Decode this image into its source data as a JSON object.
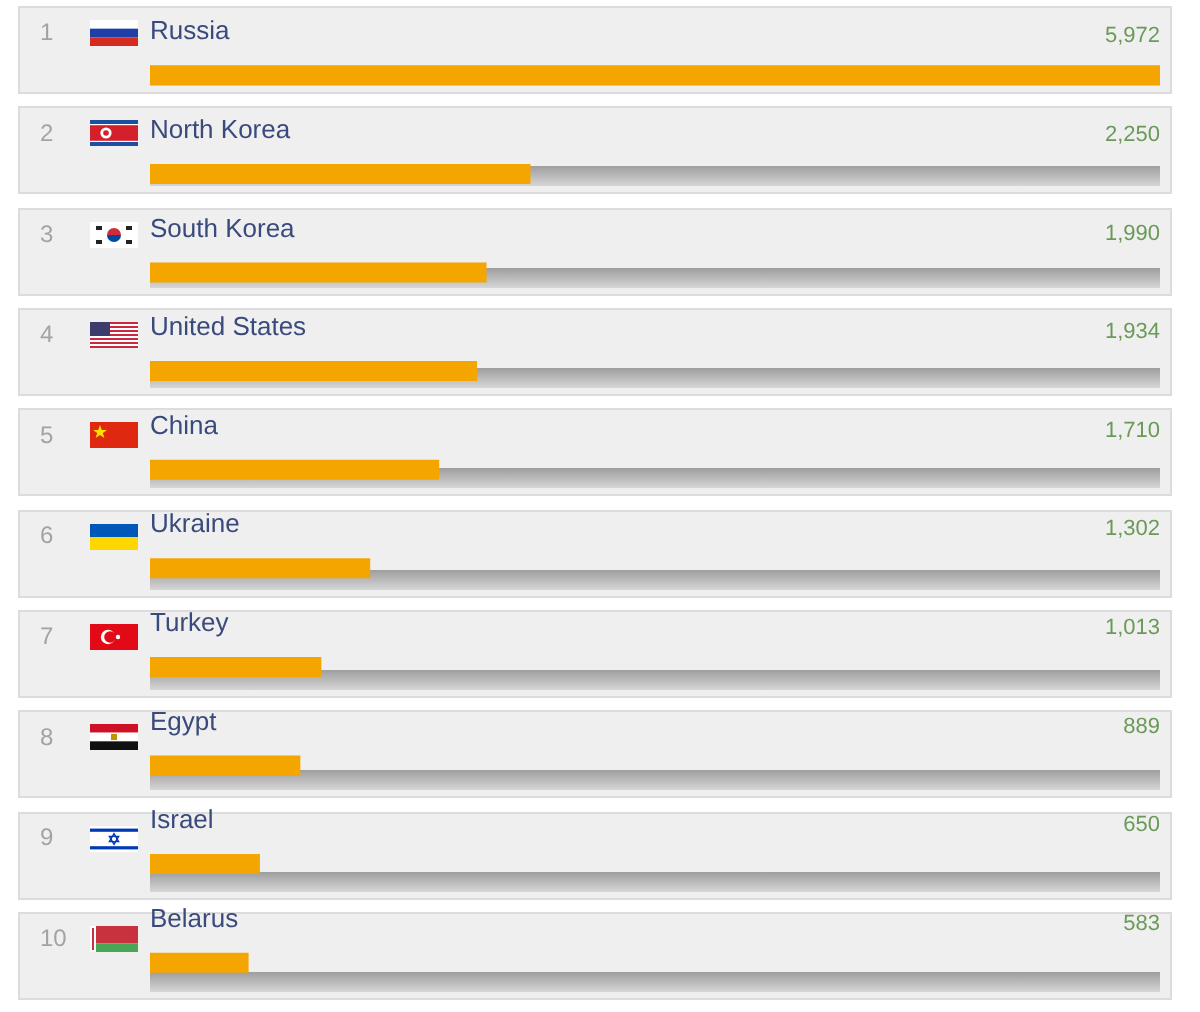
{
  "chart_data": {
    "type": "bar",
    "orientation": "horizontal",
    "categories": [
      "Russia",
      "North Korea",
      "South Korea",
      "United States",
      "China",
      "Ukraine",
      "Turkey",
      "Egypt",
      "Israel",
      "Belarus"
    ],
    "values": [
      5972,
      2250,
      1990,
      1934,
      1710,
      1302,
      1013,
      889,
      650,
      583
    ],
    "value_labels": [
      "5,972",
      "2,250",
      "1,990",
      "1,934",
      "1,710",
      "1,302",
      "1,013",
      "889",
      "650",
      "583"
    ],
    "color": "#f5a500",
    "xlim": [
      0,
      5972
    ],
    "tick_labels": "y",
    "annotations": [
      "1",
      "2",
      "3",
      "4",
      "5",
      "6",
      "7",
      "8",
      "9",
      "10"
    ]
  }
}
